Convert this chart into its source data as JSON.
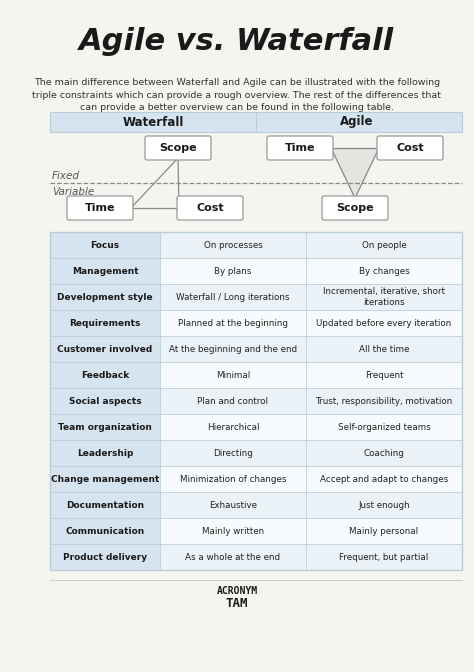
{
  "title": "Agile vs. Waterfall",
  "subtitle": "The main difference between Waterfall and Agile can be illustrated with the following\ntriple constraints which can provide a rough overview. The rest of the differences that\ncan provide a better overview can be found in the following table.",
  "bg_color": "#f5f5f0",
  "table_header_bg": "#d6e4f0",
  "table_row_bg_odd": "#eaf2f8",
  "table_row_bg_even": "#f8fbfd",
  "table_border_color": "#b8cdd8",
  "box_bg": "#ffffff",
  "box_border": "#999999",
  "rows": [
    [
      "Focus",
      "On processes",
      "On people"
    ],
    [
      "Management",
      "By plans",
      "By changes"
    ],
    [
      "Development style",
      "Waterfall / Long iterations",
      "Incremental, iterative, short\niterations"
    ],
    [
      "Requirements",
      "Planned at the beginning",
      "Updated before every iteration"
    ],
    [
      "Customer involved",
      "At the beginning and the end",
      "All the time"
    ],
    [
      "Feedback",
      "Minimal",
      "Frequent"
    ],
    [
      "Social aspects",
      "Plan and control",
      "Trust, responsibility, motivation"
    ],
    [
      "Team organization",
      "Hierarchical",
      "Self-organized teams"
    ],
    [
      "Leadership",
      "Directing",
      "Coaching"
    ],
    [
      "Change management",
      "Minimization of changes",
      "Accept and adapt to changes"
    ],
    [
      "Documentation",
      "Exhaustive",
      "Just enough"
    ],
    [
      "Communication",
      "Mainly written",
      "Mainly personal"
    ],
    [
      "Product delivery",
      "As a whole at the end",
      "Frequent, but partial"
    ]
  ]
}
